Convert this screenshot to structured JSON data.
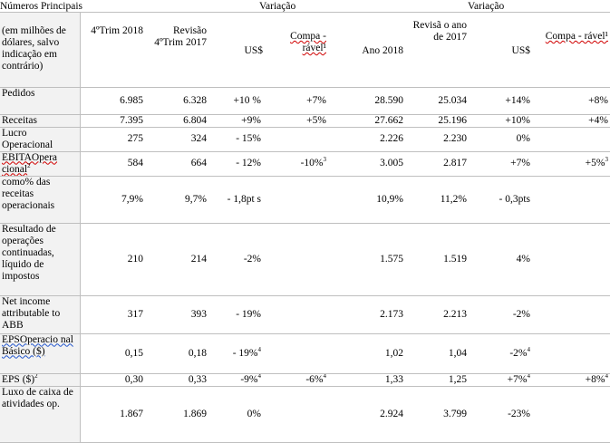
{
  "title": "Números Principais",
  "variacao_1": "Variação",
  "variacao_2": "Variação",
  "header": {
    "label": "(em milhões de dólares, salvo indicação em contrário)",
    "q4_2018": "4ºTrim 2018",
    "q4_2017": "Revisão 4ºTrim 2017",
    "usd1": "US$",
    "comp1": "Compa - rável¹",
    "year2018": "Ano 2018",
    "year2017": "Revisã o ano de 2017",
    "usd2": "US$",
    "comp2": "Compa - rável¹"
  },
  "rows": [
    {
      "label": "Pedidos",
      "q4_2018": "6.985",
      "q4_2017": "6.328",
      "usd1": "+10 %",
      "comp1": "+7%",
      "y2018": "28.590",
      "y2017": "25.034",
      "usd2": "+14%",
      "comp2": "+8%"
    },
    {
      "label": "Receitas",
      "q4_2018": "7.395",
      "q4_2017": "6.804",
      "usd1": "+9%",
      "comp1": "+5%",
      "y2018": "27.662",
      "y2017": "25.196",
      "usd2": "+10%",
      "comp2": "+4%"
    },
    {
      "label": "Lucro Operacional",
      "q4_2018": "275",
      "q4_2017": "324",
      "usd1": "- 15%",
      "comp1": "",
      "y2018": "2.226",
      "y2017": "2.230",
      "usd2": "0%",
      "comp2": ""
    },
    {
      "label": "EBITAOpera cional",
      "label_sup": "2",
      "q4_2018": "584",
      "q4_2017": "664",
      "usd1": "- 12%",
      "comp1": "-10%",
      "comp1_sup": "3",
      "y2018": "3.005",
      "y2017": "2.817",
      "usd2": "+7%",
      "comp2": "+5%",
      "comp2_sup": "3"
    },
    {
      "label": "como% das receitas operacionais",
      "q4_2018": "7,9%",
      "q4_2017": "9,7%",
      "usd1": "- 1,8pt s",
      "comp1": "",
      "y2018": "10,9%",
      "y2017": "11,2%",
      "usd2": "- 0,3pts",
      "comp2": ""
    },
    {
      "label": "Resultado de operações continuadas, líquido de impostos",
      "q4_2018": "210",
      "q4_2017": "214",
      "usd1": "-2%",
      "comp1": "",
      "y2018": "1.575",
      "y2017": "1.519",
      "usd2": "4%",
      "comp2": ""
    },
    {
      "label": "Net income attributable to ABB",
      "q4_2018": "317",
      "q4_2017": "393",
      "usd1": "- 19%",
      "comp1": "",
      "y2018": "2.173",
      "y2017": "2.213",
      "usd2": "-2%",
      "comp2": ""
    },
    {
      "label": "EPSOperacio nal Básico ($)",
      "q4_2018": "0,15",
      "q4_2017": "0,18",
      "usd1": "- 19%",
      "usd1_sup": "4",
      "comp1": "",
      "y2018": "1,02",
      "y2017": "1,04",
      "usd2": "-2%",
      "usd2_sup": "4",
      "comp2": ""
    },
    {
      "label": "EPS ($)",
      "label_sup": "2",
      "q4_2018": "0,30",
      "q4_2017": "0,33",
      "usd1": "-9%",
      "usd1_sup": "4",
      "comp1": "-6%",
      "comp1_sup": "4",
      "y2018": "1,33",
      "y2017": "1,25",
      "usd2": "+7%",
      "usd2_sup": "4",
      "comp2": "+8%",
      "comp2_sup": "4"
    },
    {
      "label": "Luxo de caixa de atividades op.",
      "q4_2018": "1.867",
      "q4_2017": "1.869",
      "usd1": "0%",
      "comp1": "",
      "y2018": "2.924",
      "y2017": "3.799",
      "usd2": "-23%",
      "comp2": ""
    }
  ]
}
